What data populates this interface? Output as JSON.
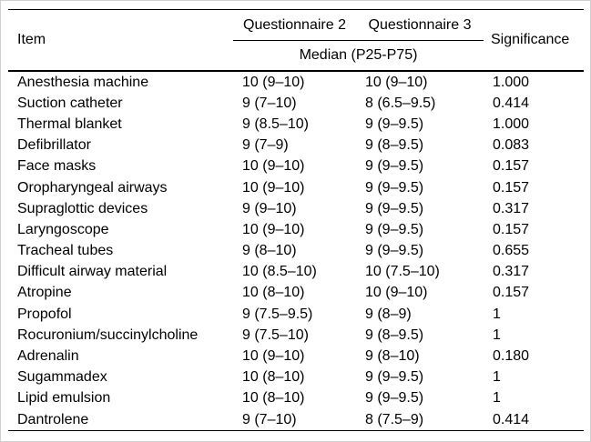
{
  "colors": {
    "background": "#ffffff",
    "text": "#000000",
    "rule": "#000000",
    "frame": "#cfcfcf"
  },
  "table": {
    "header": {
      "item": "Item",
      "q2": "Questionnaire 2",
      "q3": "Questionnaire 3",
      "subheader": "Median (P25-P75)",
      "significance": "Significance"
    },
    "rows": [
      {
        "item": "Anesthesia machine",
        "q2": "10 (9–10)",
        "q3": "10 (9–10)",
        "sig": "1.000"
      },
      {
        "item": "Suction catheter",
        "q2": "9 (7–10)",
        "q3": "8 (6.5–9.5)",
        "sig": "0.414"
      },
      {
        "item": "Thermal blanket",
        "q2": "9 (8.5–10)",
        "q3": "9 (9–9.5)",
        "sig": "1.000"
      },
      {
        "item": "Defibrillator",
        "q2": "9 (7–9)",
        "q3": "9 (8–9.5)",
        "sig": "0.083"
      },
      {
        "item": "Face masks",
        "q2": "10 (9–10)",
        "q3": "9 (9–9.5)",
        "sig": "0.157"
      },
      {
        "item": "Oropharyngeal airways",
        "q2": "10 (9–10)",
        "q3": "9 (9–9.5)",
        "sig": "0.157"
      },
      {
        "item": "Supraglottic devices",
        "q2": "9 (9–10)",
        "q3": "9 (9–9.5)",
        "sig": "0.317"
      },
      {
        "item": "Laryngoscope",
        "q2": "10 (9–10)",
        "q3": "9 (9–9.5)",
        "sig": "0.157"
      },
      {
        "item": "Tracheal tubes",
        "q2": "9 (8–10)",
        "q3": "9 (9–9.5)",
        "sig": "0.655"
      },
      {
        "item": "Difficult airway material",
        "q2": "10 (8.5–10)",
        "q3": "10 (7.5–10)",
        "sig": "0.317"
      },
      {
        "item": "Atropine",
        "q2": "10 (8–10)",
        "q3": "10 (9–10)",
        "sig": "0.157"
      },
      {
        "item": "Propofol",
        "q2": "9 (7.5–9.5)",
        "q3": "9 (8–9)",
        "sig": "1"
      },
      {
        "item": "Rocuronium/succinylcholine",
        "q2": "9 (7.5–10)",
        "q3": "9 (8–9.5)",
        "sig": "1"
      },
      {
        "item": "Adrenalin",
        "q2": "10 (9–10)",
        "q3": "9 (8–10)",
        "sig": "0.180"
      },
      {
        "item": "Sugammadex",
        "q2": "10 (8–10)",
        "q3": "9 (9–9.5)",
        "sig": "1"
      },
      {
        "item": "Lipid emulsion",
        "q2": "10 (8–10)",
        "q3": "9 (9–9.5)",
        "sig": "1"
      },
      {
        "item": "Dantrolene",
        "q2": "9 (7–10)",
        "q3": "8 (7.5–9)",
        "sig": "0.414"
      }
    ]
  }
}
